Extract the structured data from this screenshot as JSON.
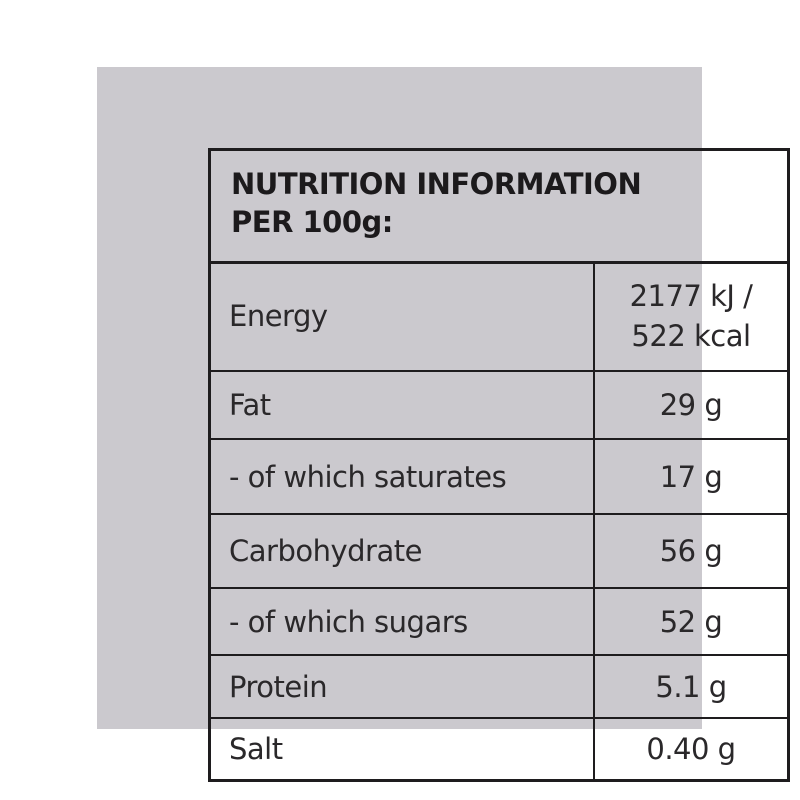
{
  "header": {
    "line1": "NUTRITION INFORMATION",
    "line2": "PER 100g:"
  },
  "rows": [
    {
      "label": "Energy",
      "value": "2177 kJ /",
      "value2": "522 kcal"
    },
    {
      "label": "Fat",
      "value": "29 g"
    },
    {
      "label": "- of which saturates",
      "value": "17 g"
    },
    {
      "label": "Carbohydrate",
      "value": "56 g"
    },
    {
      "label": "- of which sugars",
      "value": "52 g"
    },
    {
      "label": "Protein",
      "value": "5.1 g"
    },
    {
      "label": "Salt",
      "value": "0.40 g"
    }
  ],
  "colors": {
    "panel": "#cbc9ce",
    "border": "#1e1c1e",
    "text": "#2a282a"
  }
}
